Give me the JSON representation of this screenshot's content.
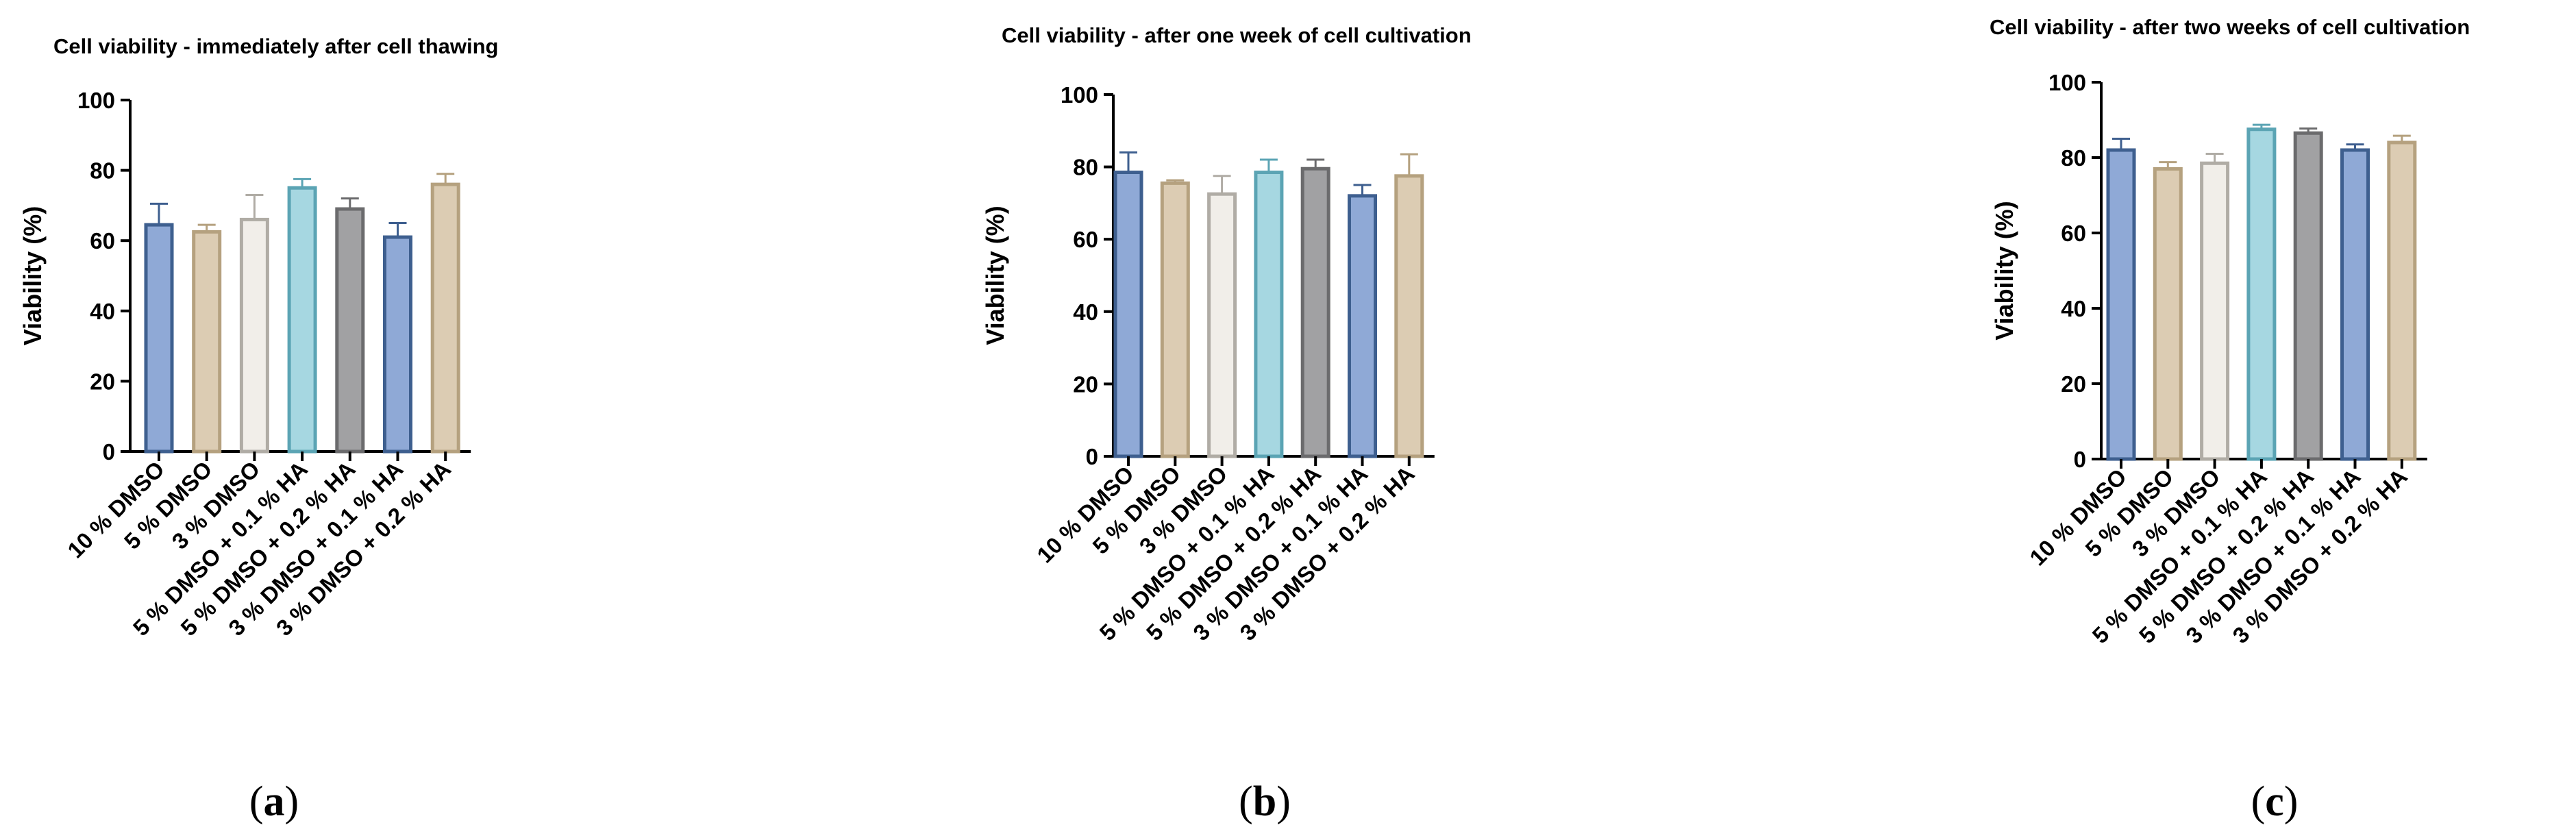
{
  "chart_data": [
    {
      "type": "bar",
      "panel_label": "a",
      "title": "Cell viability - immediately after cell thawing",
      "ylabel": "Viability (%)",
      "xlabel": "",
      "ylim": [
        0,
        100
      ],
      "yticks": [
        0,
        20,
        40,
        60,
        80,
        100
      ],
      "categories": [
        "10 % DMSO",
        "5 % DMSO",
        "3 % DMSO",
        "5 % DMSO + 0.1 % HA",
        "5 % DMSO + 0.2 % HA",
        "3 % DMSO + 0.1 % HA",
        "3 % DMSO + 0.2 % HA"
      ],
      "values": [
        64.5,
        62.5,
        66,
        75,
        69,
        61,
        76
      ],
      "errors": [
        6,
        2,
        7,
        2.5,
        3,
        4,
        3
      ],
      "colors": [
        "#8fa9d6",
        "#dcccb3",
        "#f1eee9",
        "#a6d7e1",
        "#a1a1a3",
        "#8fa9d6",
        "#dcccb3"
      ],
      "edge_colors": [
        "#3e5f8f",
        "#b5a17f",
        "#b0aca5",
        "#5ba4b4",
        "#6b6b6d",
        "#3e5f8f",
        "#b5a17f"
      ]
    },
    {
      "type": "bar",
      "panel_label": "b",
      "title": "Cell viability  - after one week of cell cultivation",
      "ylabel": "Viability (%)",
      "xlabel": "",
      "ylim": [
        0,
        100
      ],
      "yticks": [
        0,
        20,
        40,
        60,
        80,
        100
      ],
      "categories": [
        "10 % DMSO",
        "5 % DMSO",
        "3 % DMSO",
        "5 % DMSO + 0.1 % HA",
        "5 % DMSO + 0.2 % HA",
        "3 % DMSO + 0.1 % HA",
        "3 % DMSO + 0.2 % HA"
      ],
      "values": [
        78.5,
        75.5,
        72.5,
        78.5,
        79.5,
        72,
        77.5
      ],
      "errors": [
        5.5,
        0.8,
        5,
        3.5,
        2.5,
        3,
        6
      ],
      "colors": [
        "#8fa9d6",
        "#dcccb3",
        "#f1eee9",
        "#a6d7e1",
        "#a1a1a3",
        "#8fa9d6",
        "#dcccb3"
      ],
      "edge_colors": [
        "#3e5f8f",
        "#b5a17f",
        "#b0aca5",
        "#5ba4b4",
        "#6b6b6d",
        "#3e5f8f",
        "#b5a17f"
      ]
    },
    {
      "type": "bar",
      "panel_label": "c",
      "title": "Cell viability  - after two weeks of cell cultivation",
      "ylabel": "Viability (%)",
      "xlabel": "",
      "ylim": [
        0,
        100
      ],
      "yticks": [
        0,
        20,
        40,
        60,
        80,
        100
      ],
      "categories": [
        "10 % DMSO",
        "5 % DMSO",
        "3 % DMSO",
        "5 % DMSO + 0.1 % HA",
        "5 % DMSO + 0.2 % HA",
        "3 % DMSO + 0.1 % HA",
        "3 % DMSO + 0.2 % HA"
      ],
      "values": [
        82,
        77,
        78.5,
        87.5,
        86.5,
        82,
        84
      ],
      "errors": [
        3,
        1.8,
        2.5,
        1.2,
        1.2,
        1.5,
        1.8
      ],
      "colors": [
        "#8fa9d6",
        "#dcccb3",
        "#f1eee9",
        "#a6d7e1",
        "#a1a1a3",
        "#8fa9d6",
        "#dcccb3"
      ],
      "edge_colors": [
        "#3e5f8f",
        "#b5a17f",
        "#b0aca5",
        "#5ba4b4",
        "#6b6b6d",
        "#3e5f8f",
        "#b5a17f"
      ]
    }
  ]
}
